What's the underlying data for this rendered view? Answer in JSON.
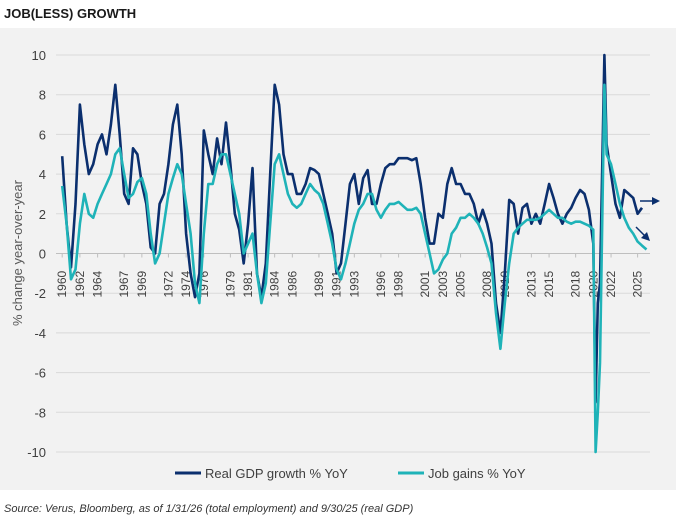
{
  "chart_data": {
    "type": "line",
    "title": "JOB(LESS) GROWTH",
    "y_label": "% change year-over-year",
    "source": "Source: Verus, Bloomberg, as of 1/31/26 (total employment) and 9/30/25 (real GDP)",
    "x": [
      1960,
      1960.5,
      1961,
      1961.5,
      1962,
      1962.5,
      1963,
      1963.5,
      1964,
      1964.5,
      1965,
      1965.5,
      1966,
      1966.5,
      1967,
      1967.5,
      1968,
      1968.5,
      1969,
      1969.5,
      1970,
      1970.5,
      1971,
      1971.5,
      1972,
      1972.5,
      1973,
      1973.5,
      1974,
      1974.5,
      1975,
      1975.5,
      1976,
      1976.5,
      1977,
      1977.5,
      1978,
      1978.5,
      1979,
      1979.5,
      1980,
      1980.5,
      1981,
      1981.5,
      1982,
      1982.5,
      1983,
      1983.5,
      1984,
      1984.5,
      1985,
      1985.5,
      1986,
      1986.5,
      1987,
      1987.5,
      1988,
      1988.5,
      1989,
      1989.5,
      1990,
      1990.5,
      1991,
      1991.5,
      1992,
      1992.5,
      1993,
      1993.5,
      1994,
      1994.5,
      1995,
      1995.5,
      1996,
      1996.5,
      1997,
      1997.5,
      1998,
      1998.5,
      1999,
      1999.5,
      2000,
      2000.5,
      2001,
      2001.5,
      2002,
      2002.5,
      2003,
      2003.5,
      2004,
      2004.5,
      2005,
      2005.5,
      2006,
      2006.5,
      2007,
      2007.5,
      2008,
      2008.5,
      2009,
      2009.5,
      2010,
      2010.5,
      2011,
      2011.5,
      2012,
      2012.5,
      2013,
      2013.5,
      2014,
      2014.5,
      2015,
      2015.5,
      2016,
      2016.5,
      2017,
      2017.5,
      2018,
      2018.5,
      2019,
      2019.5,
      2020,
      2020.25,
      2020.5,
      2020.75,
      2021.25,
      2021.5,
      2022,
      2022.5,
      2023,
      2023.5,
      2024,
      2024.5,
      2025,
      2025.5,
      2026
    ],
    "series": [
      {
        "name": "Real GDP growth % YoY",
        "color": "#0b2f6e",
        "values": [
          4.9,
          1.5,
          -0.7,
          2.5,
          7.5,
          5.5,
          4.0,
          4.5,
          5.5,
          6.0,
          5.0,
          6.5,
          8.5,
          6.0,
          3.0,
          2.5,
          5.3,
          5.0,
          3.5,
          2.5,
          0.3,
          0.0,
          2.5,
          3.0,
          4.5,
          6.5,
          7.5,
          5.0,
          1.0,
          -1.0,
          -2.2,
          -1.0,
          6.2,
          5.0,
          4.0,
          5.8,
          4.5,
          6.6,
          4.5,
          2.0,
          1.2,
          -0.5,
          1.5,
          4.3,
          -1.0,
          -2.2,
          -0.5,
          4.0,
          8.5,
          7.5,
          5.0,
          4.0,
          4.0,
          3.0,
          3.0,
          3.5,
          4.3,
          4.2,
          4.0,
          3.0,
          2.0,
          1.0,
          -1.0,
          -0.5,
          1.5,
          3.5,
          4.0,
          2.5,
          3.8,
          4.2,
          2.5,
          2.5,
          3.5,
          4.3,
          4.5,
          4.5,
          4.8,
          4.8,
          4.8,
          4.7,
          4.8,
          3.5,
          1.8,
          0.5,
          0.5,
          2.0,
          1.8,
          3.5,
          4.3,
          3.5,
          3.5,
          3.0,
          3.0,
          2.5,
          1.5,
          2.2,
          1.5,
          0.5,
          -2.5,
          -4.0,
          -1.0,
          2.7,
          2.5,
          1.0,
          2.3,
          2.5,
          1.5,
          2.0,
          1.5,
          2.5,
          3.5,
          2.8,
          2.0,
          1.5,
          2.0,
          2.3,
          2.8,
          3.2,
          3.0,
          2.2,
          0.5,
          -7.5,
          -2.5,
          -1.5,
          10.0,
          5.5,
          4.0,
          2.5,
          1.8,
          3.2,
          3.0,
          2.8,
          2.0,
          2.3,
          null
        ]
      },
      {
        "name": "Job gains % YoY",
        "color": "#1fb3b8",
        "values": [
          3.4,
          1.5,
          -1.3,
          -0.8,
          1.5,
          3.0,
          2.0,
          1.8,
          2.5,
          3.0,
          3.5,
          4.0,
          5.0,
          5.3,
          4.0,
          2.8,
          3.0,
          3.6,
          3.8,
          3.0,
          1.0,
          -0.5,
          0.0,
          1.5,
          3.0,
          3.8,
          4.5,
          4.0,
          2.5,
          1.0,
          -1.5,
          -2.5,
          1.0,
          3.5,
          3.5,
          4.5,
          5.0,
          5.0,
          4.0,
          3.0,
          2.0,
          0.0,
          0.5,
          1.0,
          -1.0,
          -2.5,
          -1.5,
          1.5,
          4.5,
          5.0,
          4.0,
          3.0,
          2.5,
          2.3,
          2.5,
          3.0,
          3.5,
          3.2,
          3.0,
          2.5,
          1.5,
          0.5,
          -0.8,
          -1.3,
          -0.5,
          0.5,
          1.5,
          2.2,
          2.5,
          3.0,
          3.0,
          2.2,
          1.8,
          2.2,
          2.5,
          2.5,
          2.6,
          2.4,
          2.2,
          2.2,
          2.3,
          2.0,
          1.0,
          0.0,
          -1.0,
          -0.8,
          -0.3,
          0.0,
          1.0,
          1.3,
          1.8,
          1.8,
          2.0,
          1.8,
          1.5,
          1.0,
          0.3,
          -0.5,
          -3.0,
          -4.8,
          -2.5,
          -0.5,
          1.0,
          1.3,
          1.5,
          1.7,
          1.7,
          1.7,
          1.8,
          2.0,
          2.2,
          2.0,
          1.8,
          1.8,
          1.6,
          1.5,
          1.6,
          1.6,
          1.5,
          1.4,
          1.2,
          -10.0,
          -8.0,
          -5.5,
          8.5,
          5.0,
          4.5,
          3.5,
          2.5,
          1.8,
          1.3,
          1.0,
          0.6,
          0.4,
          0.2
        ]
      }
    ],
    "xlim": [
      1959.3,
      2026.4
    ],
    "xticks": [
      1960,
      1962,
      1964,
      1967,
      1969,
      1972,
      1974,
      1976,
      1979,
      1981,
      1984,
      1986,
      1989,
      1991,
      1993,
      1996,
      1998,
      2001,
      2003,
      2005,
      2008,
      2010,
      2013,
      2015,
      2018,
      2020,
      2022,
      2025
    ],
    "ylim": [
      -10,
      10
    ],
    "yticks": [
      -10,
      -8,
      -6,
      -4,
      -2,
      0,
      2,
      4,
      6,
      8,
      10
    ],
    "grid": true,
    "legend": "bottom"
  }
}
